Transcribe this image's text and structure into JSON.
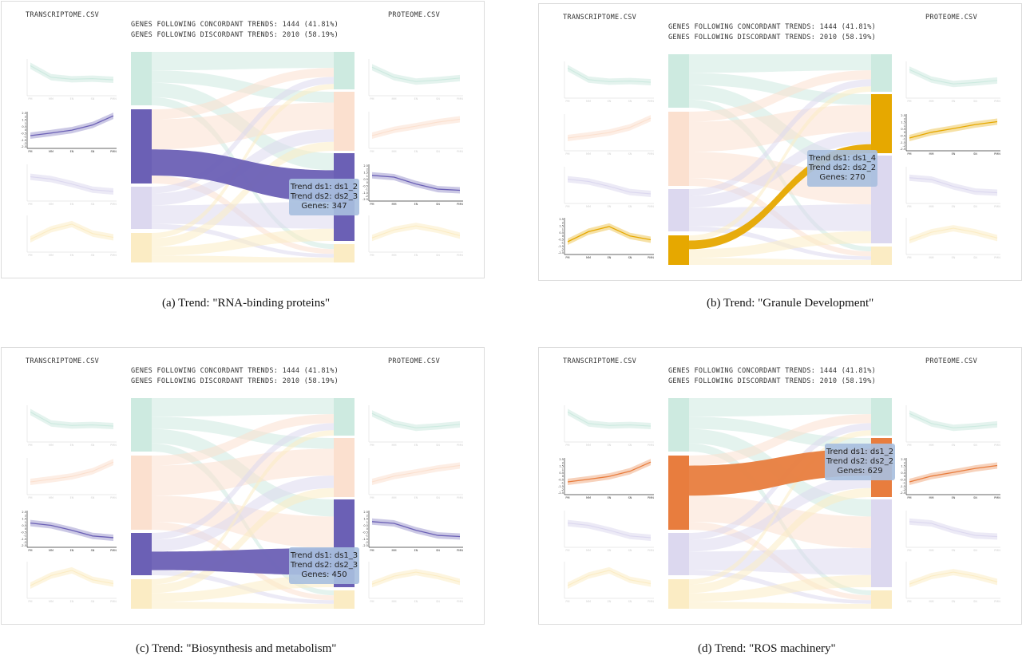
{
  "left_file": "TRANSCRIPTOME.CSV",
  "right_file": "PROTEOME.CSV",
  "concordant": "GENES FOLLOWING CONCORDANT TRENDS: 1444 (41.81%)",
  "discordant": "GENES FOLLOWING DISCORDANT TRENDS: 2010 (58.19%)",
  "x_ticks": [
    "PM",
    "MM",
    "EN",
    "SN",
    "PMN"
  ],
  "y_ticks": [
    "2.5",
    "2",
    "1.5",
    "1",
    "0.5",
    "0",
    "-0.5",
    "-1",
    "-1.5",
    "-2",
    "-2.5"
  ],
  "colors": {
    "green": "#1a9e77",
    "orange": "#e87d3e",
    "purple": "#6b60b5",
    "yellow": "#e6ab02",
    "highlight_yellow": "#e6a800"
  },
  "panels": [
    {
      "caption": "(a) Trend: \"RNA-binding proteins\"",
      "color": "purple",
      "left_node": 1,
      "right_node": 2,
      "tooltip": [
        "Trend ds1: ds1_2",
        "Trend ds2: ds2_3",
        "Genes: 347"
      ]
    },
    {
      "caption": "(b) Trend: \"Granule Development\"",
      "color": "highlight_yellow",
      "left_node": 3,
      "right_node": 1,
      "tooltip": [
        "Trend ds1: ds1_4",
        "Trend ds2: ds2_2",
        "Genes: 270"
      ]
    },
    {
      "caption": "(c) Trend: \"Biosynthesis and metabolism\"",
      "color": "purple",
      "left_node": 2,
      "right_node": 2,
      "tooltip": [
        "Trend ds1: ds1_3",
        "Trend ds2: ds2_3",
        "Genes: 450"
      ]
    },
    {
      "caption": "(d) Trend: \"ROS machinery\"",
      "color": "orange",
      "left_node": 1,
      "right_node": 1,
      "tooltip": [
        "Trend ds1: ds1_2",
        "Trend ds2: ds2_2",
        "Genes: 629"
      ]
    }
  ]
}
